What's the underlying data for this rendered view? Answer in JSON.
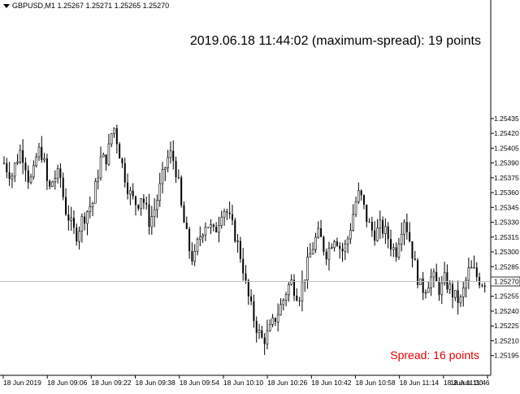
{
  "header": {
    "symbol_line": "GBPUSD,M1  1.25267 1.25271 1.25265 1.25270"
  },
  "overlay": {
    "datetime_spread": "2019.06.18 11:44:02   (maximum-spread): 19 points",
    "current_spread": "Spread: 16 points",
    "spread_color": "#e00000"
  },
  "price_label": {
    "value": "1.25270"
  },
  "chart_data": {
    "type": "candlestick",
    "symbol": "GBPUSD",
    "timeframe": "M1",
    "ohlc_header": {
      "open": 1.25267,
      "high": 1.25271,
      "low": 1.25265,
      "close": 1.2527
    },
    "current_price": 1.2527,
    "ylim": [
      1.25175,
      1.25555
    ],
    "y_ticks": [
      "1.25435",
      "1.25420",
      "1.25405",
      "1.25390",
      "1.25375",
      "1.25360",
      "1.25345",
      "1.25330",
      "1.25315",
      "1.25300",
      "1.25285",
      "1.25270",
      "1.25255",
      "1.25240",
      "1.25225",
      "1.25210",
      "1.25195"
    ],
    "x_ticks": [
      "18 Jun 2019",
      "18 Jun 09:06",
      "18 Jun 09:22",
      "18 Jun 09:38",
      "18 Jun 09:54",
      "18 Jun 10:10",
      "18 Jun 10:26",
      "18 Jun 10:42",
      "18 Jun 10:58",
      "18 Jun 11:14",
      "18 Jun 11:30",
      "18 Jun 11:46"
    ],
    "close_path": [
      1.2539,
      1.25382,
      1.25378,
      1.25392,
      1.25402,
      1.25395,
      1.25375,
      1.25372,
      1.25396,
      1.25405,
      1.25388,
      1.2536,
      1.25372,
      1.25378,
      1.25375,
      1.25345,
      1.25335,
      1.25322,
      1.25318,
      1.2533,
      1.25337,
      1.25345,
      1.2535,
      1.25375,
      1.25395,
      1.25392,
      1.25405,
      1.2543,
      1.25412,
      1.25392,
      1.25375,
      1.2536,
      1.25352,
      1.25348,
      1.25358,
      1.25345,
      1.2533,
      1.2534,
      1.25355,
      1.25372,
      1.25388,
      1.254,
      1.25392,
      1.25375,
      1.2534,
      1.2532,
      1.253,
      1.2529,
      1.2531,
      1.25322,
      1.2533,
      1.25325,
      1.25318,
      1.2533,
      1.25345,
      1.25342,
      1.2533,
      1.2532,
      1.25305,
      1.25288,
      1.25262,
      1.25245,
      1.2523,
      1.25218,
      1.2521,
      1.25215,
      1.25222,
      1.25232,
      1.2524,
      1.2525,
      1.25262,
      1.2527,
      1.25262,
      1.25255,
      1.2527,
      1.25285,
      1.253,
      1.25312,
      1.25318,
      1.25305,
      1.25298,
      1.2531,
      1.25318,
      1.25305,
      1.253,
      1.25312,
      1.2533,
      1.2535,
      1.2536,
      1.25345,
      1.2533,
      1.25322,
      1.25318,
      1.25325,
      1.25322,
      1.25315,
      1.25305,
      1.253,
      1.2532,
      1.25335,
      1.2532,
      1.253,
      1.2528,
      1.25265,
      1.25262,
      1.2527,
      1.25275,
      1.25268,
      1.2526,
      1.25272,
      1.25265,
      1.25258,
      1.25252,
      1.2525,
      1.25265,
      1.2528,
      1.25282,
      1.25275,
      1.2527,
      1.2527
    ],
    "grid": false,
    "legend": "none"
  }
}
